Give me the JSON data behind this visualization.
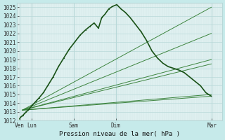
{
  "bg_color": "#c6eaea",
  "plot_bg": "#dff0f0",
  "grid_color_major": "#b8d8d8",
  "grid_color_minor": "#cce4e4",
  "line_color_dark": "#1a5218",
  "line_color_fan": "#2d7a2d",
  "ylim": [
    1012,
    1025.5
  ],
  "yticks": [
    1012,
    1013,
    1014,
    1015,
    1016,
    1017,
    1018,
    1019,
    1020,
    1021,
    1022,
    1023,
    1024,
    1025
  ],
  "xlabel": "Pression niveau de la mer( hPa )",
  "xtick_labels": [
    "Ven",
    "Lun",
    "Sam",
    "Dim",
    "Mar"
  ],
  "xtick_positions": [
    0.0,
    0.22,
    1.0,
    1.78,
    3.56
  ],
  "xlim": [
    -0.05,
    3.75
  ],
  "axis_fontsize": 6.5,
  "tick_fontsize": 5.5,
  "main_x": [
    0.0,
    0.02,
    0.04,
    0.06,
    0.09,
    0.12,
    0.16,
    0.2,
    0.24,
    0.3,
    0.36,
    0.44,
    0.52,
    0.62,
    0.72,
    0.82,
    0.92,
    1.02,
    1.12,
    1.22,
    1.3,
    1.38,
    1.46,
    1.52,
    1.58,
    1.65,
    1.72,
    1.8,
    1.88,
    1.96,
    2.05,
    2.15,
    2.25,
    2.35,
    2.45,
    2.55,
    2.65,
    2.75,
    2.85,
    2.95,
    3.05,
    3.15,
    3.25,
    3.35,
    3.45,
    3.55
  ],
  "main_y": [
    1012.2,
    1012.4,
    1012.5,
    1012.6,
    1012.8,
    1013.0,
    1013.2,
    1013.5,
    1013.8,
    1014.2,
    1014.6,
    1015.2,
    1016.0,
    1017.0,
    1018.2,
    1019.2,
    1020.2,
    1021.0,
    1021.8,
    1022.4,
    1022.8,
    1023.2,
    1022.6,
    1023.8,
    1024.2,
    1024.8,
    1025.1,
    1025.3,
    1024.8,
    1024.4,
    1023.8,
    1023.0,
    1022.2,
    1021.2,
    1020.0,
    1019.2,
    1018.6,
    1018.2,
    1018.0,
    1017.8,
    1017.5,
    1017.0,
    1016.5,
    1016.0,
    1015.2,
    1014.8
  ],
  "fan_lines": [
    {
      "x": [
        0.05,
        3.55
      ],
      "y": [
        1013.2,
        1025.0
      ]
    },
    {
      "x": [
        0.05,
        3.55
      ],
      "y": [
        1013.2,
        1022.0
      ]
    },
    {
      "x": [
        0.05,
        3.55
      ],
      "y": [
        1013.2,
        1019.0
      ]
    },
    {
      "x": [
        0.05,
        3.55
      ],
      "y": [
        1013.2,
        1018.5
      ]
    },
    {
      "x": [
        0.05,
        3.55
      ],
      "y": [
        1013.2,
        1015.0
      ]
    },
    {
      "x": [
        0.05,
        3.55
      ],
      "y": [
        1013.2,
        1014.8
      ]
    }
  ],
  "vlines_x": [
    0.0,
    0.22,
    1.0,
    1.78,
    3.56
  ]
}
